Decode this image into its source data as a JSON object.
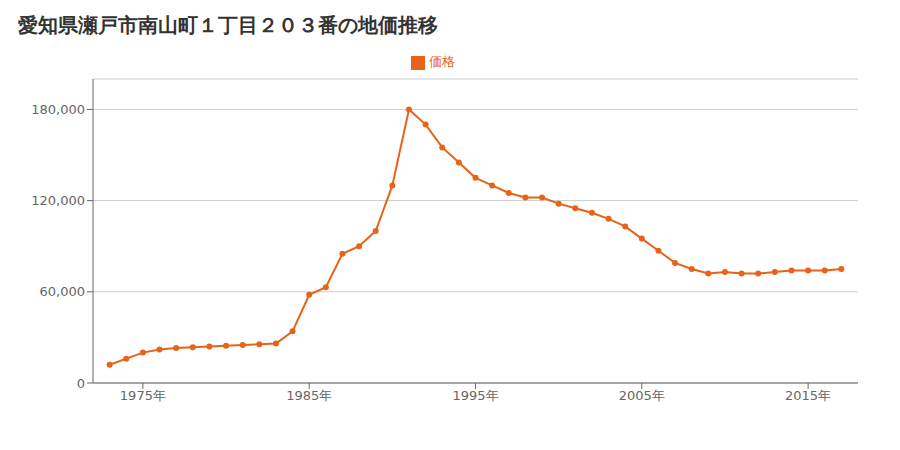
{
  "chart_data": {
    "type": "line",
    "title": "愛知県瀬戸市南山町１丁目２０３番の地価推移",
    "x": [
      1973,
      1974,
      1975,
      1976,
      1977,
      1978,
      1979,
      1980,
      1981,
      1982,
      1983,
      1984,
      1985,
      1986,
      1987,
      1988,
      1989,
      1990,
      1991,
      1992,
      1993,
      1994,
      1995,
      1996,
      1997,
      1998,
      1999,
      2000,
      2001,
      2002,
      2003,
      2004,
      2005,
      2006,
      2007,
      2008,
      2009,
      2010,
      2011,
      2012,
      2013,
      2014,
      2015,
      2016,
      2017
    ],
    "series": [
      {
        "name": "価格",
        "color": "#E8621A",
        "marker": "circle",
        "values": [
          12000,
          16000,
          20000,
          22000,
          23000,
          23500,
          24000,
          24500,
          25000,
          25500,
          26000,
          34000,
          58000,
          63000,
          85000,
          90000,
          100000,
          130000,
          180000,
          170000,
          155000,
          145000,
          135000,
          130000,
          125000,
          122000,
          122000,
          118000,
          115000,
          112000,
          108000,
          103000,
          95000,
          87000,
          79000,
          75000,
          72000,
          73000,
          72000,
          72000,
          73000,
          74000,
          74000,
          74000,
          75000
        ]
      }
    ],
    "xlim": [
      1972,
      2018
    ],
    "xticks": [
      {
        "value": 1975,
        "label": "1975年"
      },
      {
        "value": 1985,
        "label": "1985年"
      },
      {
        "value": 1995,
        "label": "1995年"
      },
      {
        "value": 2005,
        "label": "2005年"
      },
      {
        "value": 2015,
        "label": "2015年"
      }
    ],
    "ylim": [
      0,
      200000
    ],
    "yticks": [
      0,
      {
        "value": 60000,
        "label": "60,000"
      },
      {
        "value": 120000,
        "label": "120,000"
      },
      {
        "value": 180000,
        "label": "180,000"
      }
    ],
    "grid": true,
    "legend": "top"
  }
}
